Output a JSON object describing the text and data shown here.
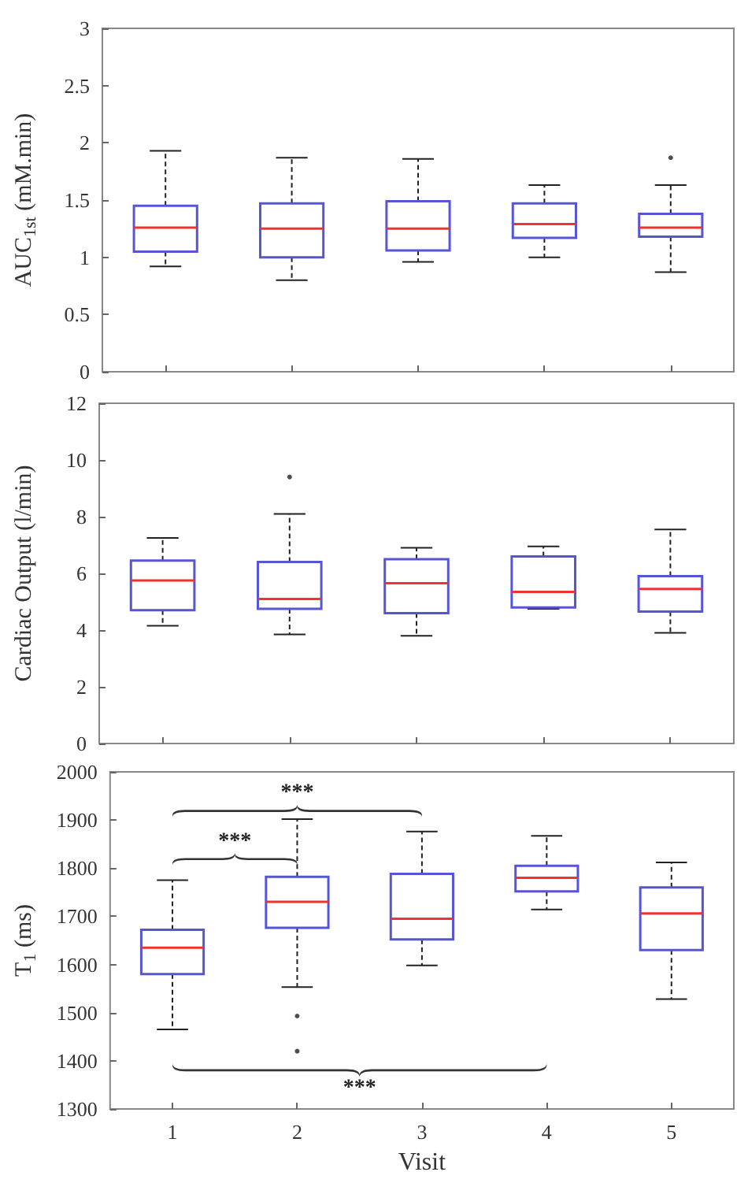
{
  "chart_data": [
    {
      "type": "box",
      "categories": [
        "1",
        "2",
        "3",
        "4",
        "5"
      ],
      "ylabel": "AUC$_{1st}$ (mM.min)",
      "ylim": [
        0,
        3
      ],
      "yticks": [
        0,
        0.5,
        1,
        1.5,
        2,
        2.5,
        3
      ],
      "tick_labels": "y",
      "grid": false,
      "series": [
        {
          "color": "#5555d5",
          "boxes": [
            {
              "low": 0.92,
              "q1": 1.05,
              "median": 1.26,
              "q3": 1.45,
              "high": 1.93
            },
            {
              "low": 0.8,
              "q1": 1.0,
              "median": 1.25,
              "q3": 1.47,
              "high": 1.87
            },
            {
              "low": 0.96,
              "q1": 1.06,
              "median": 1.25,
              "q3": 1.49,
              "high": 1.86
            },
            {
              "low": 1.0,
              "q1": 1.17,
              "median": 1.29,
              "q3": 1.47,
              "high": 1.63
            },
            {
              "low": 0.87,
              "q1": 1.18,
              "median": 1.26,
              "q3": 1.38,
              "high": 1.63,
              "outliers": [
                1.87
              ]
            }
          ]
        }
      ]
    },
    {
      "type": "box",
      "categories": [
        "1",
        "2",
        "3",
        "4",
        "5"
      ],
      "ylabel": "Cardiac Output (l/min)",
      "ylim": [
        0,
        12
      ],
      "yticks": [
        0,
        2,
        4,
        6,
        8,
        10,
        12
      ],
      "tick_labels": "y",
      "grid": false,
      "series": [
        {
          "color": "#5555d5",
          "boxes": [
            {
              "low": 4.15,
              "q1": 4.7,
              "median": 5.75,
              "q3": 6.45,
              "high": 7.25
            },
            {
              "low": 3.85,
              "q1": 4.75,
              "median": 5.1,
              "q3": 6.4,
              "high": 8.1,
              "outliers": [
                9.4
              ]
            },
            {
              "low": 3.8,
              "q1": 4.6,
              "median": 5.65,
              "q3": 6.5,
              "high": 6.9
            },
            {
              "low": 4.75,
              "q1": 4.8,
              "median": 5.35,
              "q3": 6.6,
              "high": 6.95
            },
            {
              "low": 3.9,
              "q1": 4.65,
              "median": 5.45,
              "q3": 5.9,
              "high": 7.55
            }
          ]
        }
      ]
    },
    {
      "type": "box",
      "categories": [
        "1",
        "2",
        "3",
        "4",
        "5"
      ],
      "xlabel": "Visit",
      "ylabel": "T$_{1}$ (ms)",
      "ylim": [
        1300,
        2000
      ],
      "yticks": [
        1300,
        1400,
        1500,
        1600,
        1700,
        1800,
        1900,
        2000
      ],
      "grid": false,
      "annotations": [
        "***",
        "***",
        "***"
      ],
      "series": [
        {
          "color": "#5555d5",
          "boxes": [
            {
              "low": 1465,
              "q1": 1580,
              "median": 1635,
              "q3": 1672,
              "high": 1775
            },
            {
              "low": 1553,
              "q1": 1676,
              "median": 1730,
              "q3": 1782,
              "high": 1902,
              "outliers": [
                1493,
                1420
              ]
            },
            {
              "low": 1598,
              "q1": 1652,
              "median": 1695,
              "q3": 1788,
              "high": 1876
            },
            {
              "low": 1714,
              "q1": 1752,
              "median": 1780,
              "q3": 1805,
              "high": 1867
            },
            {
              "low": 1528,
              "q1": 1630,
              "median": 1706,
              "q3": 1760,
              "high": 1812
            }
          ]
        }
      ]
    }
  ]
}
